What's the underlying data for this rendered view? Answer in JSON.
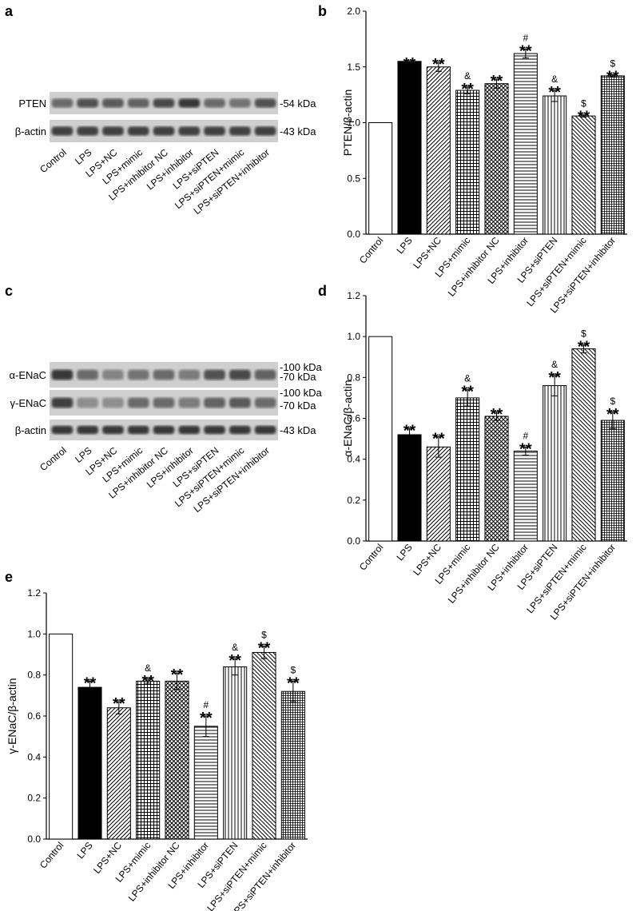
{
  "categories": [
    "Control",
    "LPS",
    "LPS+NC",
    "LPS+mimic",
    "LPS+inhibitor NC",
    "LPS+inhibitor",
    "LPS+siPTEN",
    "LPS+siPTEN+mimic",
    "LPS+siPTEN+inhibitor"
  ],
  "patterns": [
    "white",
    "black",
    "diag-up",
    "grid",
    "crosshatch",
    "horizontal",
    "vertical",
    "diag-down",
    "grid-fine"
  ],
  "blots": [
    {
      "panel": "a",
      "rows": [
        {
          "label": "PTEN",
          "markers": [
            "-54 kDa"
          ]
        },
        {
          "label": "β-actin",
          "markers": [
            "-43 kDa"
          ]
        }
      ],
      "lanes": [
        "Control",
        "LPS",
        "LPS+NC",
        "LPS+mimic",
        "LPS+inhibitor NC",
        "LPS+inhibitor",
        "LPS+siPTEN",
        "LPS+siPTEN+mimic",
        "LPS+siPTEN+inhibitor"
      ]
    },
    {
      "panel": "c",
      "rows": [
        {
          "label": "α-ENaC",
          "markers": [
            "-100 kDa",
            "-70 kDa"
          ]
        },
        {
          "label": "γ-ENaC",
          "markers": [
            "-100 kDa",
            "-70 kDa"
          ]
        },
        {
          "label": "β-actin",
          "markers": [
            "-43 kDa"
          ]
        }
      ],
      "lanes": [
        "Control",
        "LPS",
        "LPS+NC",
        "LPS+mimic",
        "LPS+inhibitor NC",
        "LPS+inhibitor",
        "LPS+siPTEN",
        "LPS+siPTEN+mimic",
        "LPS+siPTEN+inhibitor"
      ]
    }
  ],
  "chart_data": [
    {
      "panel": "b",
      "type": "bar",
      "ylabel": "PTEN/β-actin",
      "ylim": [
        0,
        2.0
      ],
      "yticks": [
        "0.0",
        "0.5",
        "1.0",
        "1.5",
        "2.0"
      ],
      "categories": [
        "Control",
        "LPS",
        "LPS+NC",
        "LPS+mimic",
        "LPS+inhibitor NC",
        "LPS+inhibitor",
        "LPS+siPTEN",
        "LPS+siPTEN+mimic",
        "LPS+siPTEN+inhibitor"
      ],
      "values": [
        1.0,
        1.55,
        1.5,
        1.29,
        1.35,
        1.62,
        1.24,
        1.06,
        1.42
      ],
      "errors": [
        0,
        0,
        0.04,
        0.03,
        0.04,
        0.04,
        0.05,
        0.01,
        0.01
      ],
      "annotations": [
        [
          "",
          ""
        ],
        [
          "",
          "**"
        ],
        [
          "",
          "**"
        ],
        [
          "&",
          "**"
        ],
        [
          "",
          "**"
        ],
        [
          "#",
          "**"
        ],
        [
          "&",
          "**"
        ],
        [
          "$",
          "**"
        ],
        [
          "$",
          "**"
        ]
      ]
    },
    {
      "panel": "d",
      "type": "bar",
      "ylabel": "α-ENaC/β-actin",
      "ylim": [
        0,
        1.2
      ],
      "yticks": [
        "0.0",
        "0.2",
        "0.4",
        "0.6",
        "0.8",
        "1.0",
        "1.2"
      ],
      "categories": [
        "Control",
        "LPS",
        "LPS+NC",
        "LPS+mimic",
        "LPS+inhibitor NC",
        "LPS+inhibitor",
        "LPS+siPTEN",
        "LPS+siPTEN+mimic",
        "LPS+siPTEN+inhibitor"
      ],
      "values": [
        1.0,
        0.52,
        0.46,
        0.7,
        0.61,
        0.44,
        0.76,
        0.94,
        0.59
      ],
      "errors": [
        0,
        0.03,
        0.05,
        0.04,
        0.02,
        0.02,
        0.05,
        0.02,
        0.04
      ],
      "annotations": [
        [
          "",
          ""
        ],
        [
          "",
          "**"
        ],
        [
          "",
          "**"
        ],
        [
          "&",
          "**"
        ],
        [
          "",
          "**"
        ],
        [
          "#",
          "**"
        ],
        [
          "&",
          "**"
        ],
        [
          "$",
          "**"
        ],
        [
          "$",
          "**"
        ]
      ]
    },
    {
      "panel": "e",
      "type": "bar",
      "ylabel": "γ-ENaC/β-actin",
      "ylim": [
        0,
        1.2
      ],
      "yticks": [
        "0.0",
        "0.2",
        "0.4",
        "0.6",
        "0.8",
        "1.0",
        "1.2"
      ],
      "categories": [
        "Control",
        "LPS",
        "LPS+NC",
        "LPS+mimic",
        "LPS+inhibitor NC",
        "LPS+inhibitor",
        "LPS+siPTEN",
        "LPS+siPTEN+mimic",
        "LPS+siPTEN+inhibitor"
      ],
      "values": [
        1.0,
        0.74,
        0.64,
        0.77,
        0.77,
        0.55,
        0.84,
        0.91,
        0.72
      ],
      "errors": [
        0,
        0.03,
        0.03,
        0.01,
        0.04,
        0.05,
        0.04,
        0.03,
        0.05
      ],
      "annotations": [
        [
          "",
          ""
        ],
        [
          "",
          "**"
        ],
        [
          "",
          "**"
        ],
        [
          "&",
          "**"
        ],
        [
          "",
          "**"
        ],
        [
          "#",
          "**"
        ],
        [
          "&",
          "**"
        ],
        [
          "$",
          "**"
        ],
        [
          "$",
          "**"
        ]
      ]
    }
  ]
}
